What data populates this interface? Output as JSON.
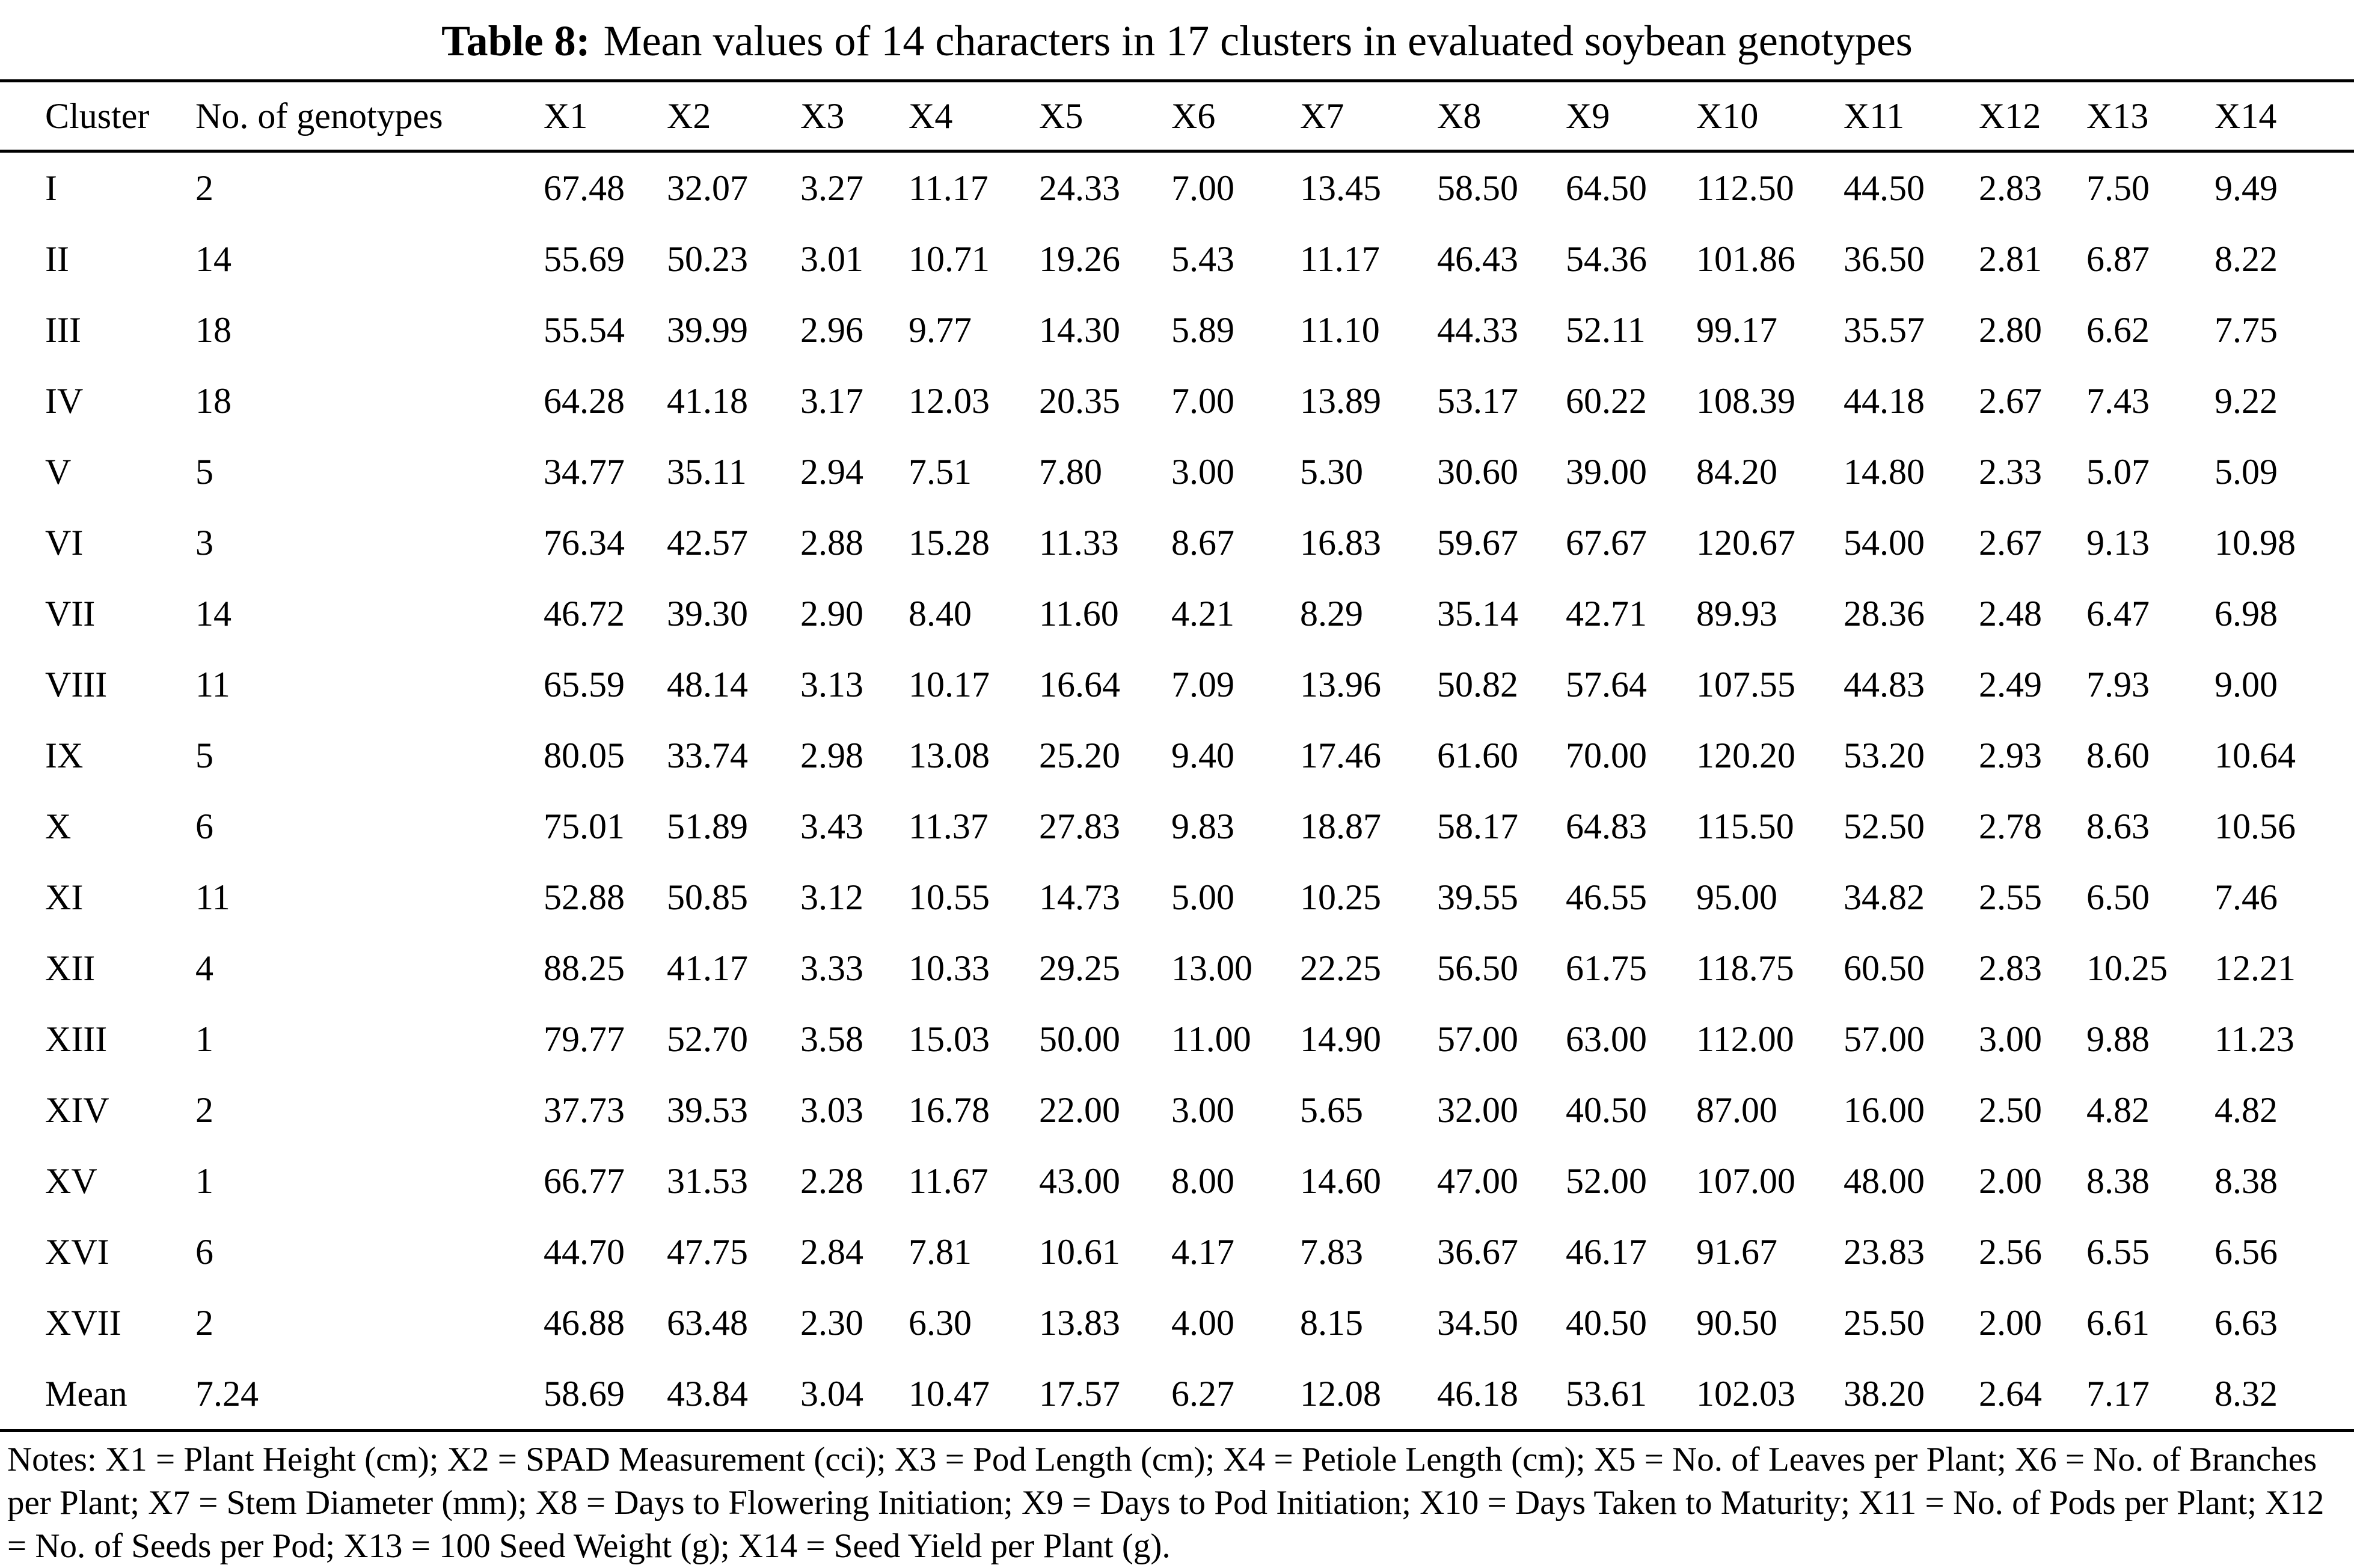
{
  "title": {
    "label": "Table 8:",
    "text": "Mean values of 14 characters in 17 clusters in evaluated soybean genotypes"
  },
  "table": {
    "columns": [
      "Cluster",
      "No. of genotypes",
      "X1",
      "X2",
      "X3",
      "X4",
      "X5",
      "X6",
      "X7",
      "X8",
      "X9",
      "X10",
      "X11",
      "X12",
      "X13",
      "X14"
    ],
    "rows": [
      [
        "I",
        "2",
        "67.48",
        "32.07",
        "3.27",
        "11.17",
        "24.33",
        "7.00",
        "13.45",
        "58.50",
        "64.50",
        "112.50",
        "44.50",
        "2.83",
        "7.50",
        "9.49"
      ],
      [
        "II",
        "14",
        "55.69",
        "50.23",
        "3.01",
        "10.71",
        "19.26",
        "5.43",
        "11.17",
        "46.43",
        "54.36",
        "101.86",
        "36.50",
        "2.81",
        "6.87",
        "8.22"
      ],
      [
        "III",
        "18",
        "55.54",
        "39.99",
        "2.96",
        "9.77",
        "14.30",
        "5.89",
        "11.10",
        "44.33",
        "52.11",
        "99.17",
        "35.57",
        "2.80",
        "6.62",
        "7.75"
      ],
      [
        "IV",
        "18",
        "64.28",
        "41.18",
        "3.17",
        "12.03",
        "20.35",
        "7.00",
        "13.89",
        "53.17",
        "60.22",
        "108.39",
        "44.18",
        "2.67",
        "7.43",
        "9.22"
      ],
      [
        "V",
        "5",
        "34.77",
        "35.11",
        "2.94",
        "7.51",
        "7.80",
        "3.00",
        "5.30",
        "30.60",
        "39.00",
        "84.20",
        "14.80",
        "2.33",
        "5.07",
        "5.09"
      ],
      [
        "VI",
        "3",
        "76.34",
        "42.57",
        "2.88",
        "15.28",
        "11.33",
        "8.67",
        "16.83",
        "59.67",
        "67.67",
        "120.67",
        "54.00",
        "2.67",
        "9.13",
        "10.98"
      ],
      [
        "VII",
        "14",
        "46.72",
        "39.30",
        "2.90",
        "8.40",
        "11.60",
        "4.21",
        "8.29",
        "35.14",
        "42.71",
        "89.93",
        "28.36",
        "2.48",
        "6.47",
        "6.98"
      ],
      [
        "VIII",
        "11",
        "65.59",
        "48.14",
        "3.13",
        "10.17",
        "16.64",
        "7.09",
        "13.96",
        "50.82",
        "57.64",
        "107.55",
        "44.83",
        "2.49",
        "7.93",
        "9.00"
      ],
      [
        "IX",
        "5",
        "80.05",
        "33.74",
        "2.98",
        "13.08",
        "25.20",
        "9.40",
        "17.46",
        "61.60",
        "70.00",
        "120.20",
        "53.20",
        "2.93",
        "8.60",
        "10.64"
      ],
      [
        "X",
        "6",
        "75.01",
        "51.89",
        "3.43",
        "11.37",
        "27.83",
        "9.83",
        "18.87",
        "58.17",
        "64.83",
        "115.50",
        "52.50",
        "2.78",
        "8.63",
        "10.56"
      ],
      [
        "XI",
        "11",
        "52.88",
        "50.85",
        "3.12",
        "10.55",
        "14.73",
        "5.00",
        "10.25",
        "39.55",
        "46.55",
        "95.00",
        "34.82",
        "2.55",
        "6.50",
        "7.46"
      ],
      [
        "XII",
        "4",
        "88.25",
        "41.17",
        "3.33",
        "10.33",
        "29.25",
        "13.00",
        "22.25",
        "56.50",
        "61.75",
        "118.75",
        "60.50",
        "2.83",
        "10.25",
        "12.21"
      ],
      [
        "XIII",
        "1",
        "79.77",
        "52.70",
        "3.58",
        "15.03",
        "50.00",
        "11.00",
        "14.90",
        "57.00",
        "63.00",
        "112.00",
        "57.00",
        "3.00",
        "9.88",
        "11.23"
      ],
      [
        "XIV",
        "2",
        "37.73",
        "39.53",
        "3.03",
        "16.78",
        "22.00",
        "3.00",
        "5.65",
        "32.00",
        "40.50",
        "87.00",
        "16.00",
        "2.50",
        "4.82",
        "4.82"
      ],
      [
        "XV",
        "1",
        "66.77",
        "31.53",
        "2.28",
        "11.67",
        "43.00",
        "8.00",
        "14.60",
        "47.00",
        "52.00",
        "107.00",
        "48.00",
        "2.00",
        "8.38",
        "8.38"
      ],
      [
        "XVI",
        "6",
        "44.70",
        "47.75",
        "2.84",
        "7.81",
        "10.61",
        "4.17",
        "7.83",
        "36.67",
        "46.17",
        "91.67",
        "23.83",
        "2.56",
        "6.55",
        "6.56"
      ],
      [
        "XVII",
        "2",
        "46.88",
        "63.48",
        "2.30",
        "6.30",
        "13.83",
        "4.00",
        "8.15",
        "34.50",
        "40.50",
        "90.50",
        "25.50",
        "2.00",
        "6.61",
        "6.63"
      ],
      [
        "Mean",
        "7.24",
        "58.69",
        "43.84",
        "3.04",
        "10.47",
        "17.57",
        "6.27",
        "12.08",
        "46.18",
        "53.61",
        "102.03",
        "38.20",
        "2.64",
        "7.17",
        "8.32"
      ]
    ]
  },
  "notes": {
    "text": "Notes: X1 = Plant Height (cm); X2 = SPAD Measurement (cci); X3 = Pod Length (cm); X4 = Petiole Length (cm); X5 = No. of Leaves per Plant; X6 = No. of Branches per Plant; X7 = Stem Diameter (mm); X8 = Days to Flowering Initiation; X9 = Days to Pod Initiation; X10 = Days Taken to Maturity; X11 = No. of Pods per Plant; X12 = No. of Seeds per Pod; X13 = 100 Seed Weight (g); X14 = Seed Yield per Plant (g)."
  }
}
